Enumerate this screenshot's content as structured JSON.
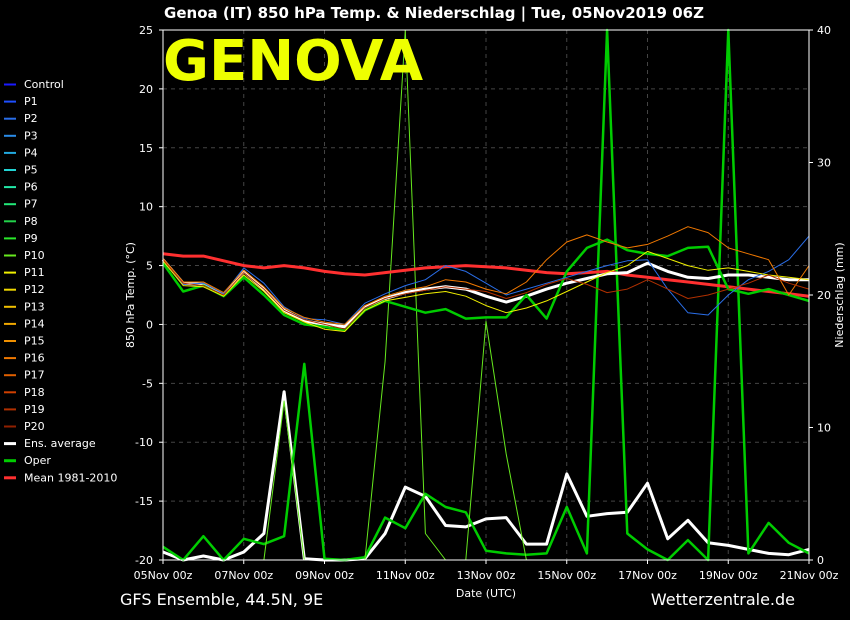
{
  "header": {
    "title": "Genoa  (IT)  850 hPa Temp. & Niederschlag | Tue, 05Nov2019 06Z",
    "city_label": "GENOVA"
  },
  "footer": {
    "left": "GFS Ensemble, 44.5N, 9E",
    "right": "Wetterzentrale.de"
  },
  "chart_data": {
    "type": "line",
    "title": "Genoa  (IT)  850 hPa Temp. & Niederschlag | Tue, 05Nov2019 06Z",
    "xlabel": "Date (UTC)",
    "ylabel": "850 hPa Temp. (°C)",
    "y2label": "Niederschlag (mm)",
    "ylim": [
      -20,
      25
    ],
    "y2lim": [
      0,
      40
    ],
    "x_ticks": [
      "05Nov 00z",
      "07Nov 00z",
      "09Nov 00z",
      "11Nov 00z",
      "13Nov 00z",
      "15Nov 00z",
      "17Nov 00z",
      "19Nov 00z",
      "21Nov 00z"
    ],
    "y_ticks": [
      25,
      20,
      15,
      10,
      5,
      0,
      -5,
      -10,
      -15,
      -20
    ],
    "y2_ticks": [
      40,
      30,
      20,
      10,
      0
    ],
    "grid": true,
    "legend_position": "left",
    "legend": [
      {
        "name": "Control",
        "color": "#1a1aff"
      },
      {
        "name": "P1",
        "color": "#1e4fff"
      },
      {
        "name": "P2",
        "color": "#2a6ee8"
      },
      {
        "name": "P3",
        "color": "#2a8ce8"
      },
      {
        "name": "P4",
        "color": "#22aae0"
      },
      {
        "name": "P5",
        "color": "#22d4d4"
      },
      {
        "name": "P6",
        "color": "#22e8a8"
      },
      {
        "name": "P7",
        "color": "#22e878"
      },
      {
        "name": "P8",
        "color": "#22d24a"
      },
      {
        "name": "P9",
        "color": "#2ae82a"
      },
      {
        "name": "P10",
        "color": "#66e81e"
      },
      {
        "name": "P11",
        "color": "#f0f000"
      },
      {
        "name": "P12",
        "color": "#f0d800"
      },
      {
        "name": "P13",
        "color": "#f0c000"
      },
      {
        "name": "P14",
        "color": "#f0a800"
      },
      {
        "name": "P15",
        "color": "#f09000"
      },
      {
        "name": "P16",
        "color": "#f07800"
      },
      {
        "name": "P17",
        "color": "#e06000"
      },
      {
        "name": "P18",
        "color": "#d04000"
      },
      {
        "name": "P19",
        "color": "#b03000"
      },
      {
        "name": "P20",
        "color": "#902000"
      },
      {
        "name": "Ens. average",
        "color": "#ffffff"
      },
      {
        "name": "Oper",
        "color": "#00cc00"
      },
      {
        "name": "Mean 1981-2010",
        "color": "#ff3030"
      }
    ],
    "x_days": [
      0,
      0.5,
      1,
      1.5,
      2,
      2.5,
      3,
      3.5,
      4,
      4.5,
      5,
      5.5,
      6,
      6.5,
      7,
      7.5,
      8,
      8.5,
      9,
      9.5,
      10,
      10.5,
      11,
      11.5,
      12,
      12.5,
      13,
      13.5,
      14,
      14.5,
      15,
      15.5,
      16
    ],
    "temp_series": [
      {
        "name": "Mean 1981-2010",
        "values": [
          6,
          5.8,
          5.8,
          5.4,
          5,
          4.8,
          5,
          4.8,
          4.5,
          4.3,
          4.2,
          4.4,
          4.6,
          4.8,
          4.9,
          5,
          4.9,
          4.8,
          4.6,
          4.4,
          4.3,
          4.4,
          4.5,
          4.2,
          4,
          3.8,
          3.6,
          3.4,
          3.2,
          3,
          2.8,
          2.6,
          2.4
        ]
      },
      {
        "name": "Ens. average",
        "values": [
          5.5,
          3.5,
          3.4,
          2.5,
          4.5,
          3,
          1.2,
          0.3,
          0,
          -0.2,
          1.5,
          2.2,
          2.7,
          3,
          3.2,
          3,
          2.4,
          1.9,
          2.4,
          3,
          3.5,
          3.9,
          4.3,
          4.4,
          5.2,
          4.5,
          4,
          3.9,
          4.2,
          4.2,
          4,
          3.8,
          3.8
        ]
      },
      {
        "name": "Oper",
        "values": [
          5.2,
          2.8,
          3.3,
          2.4,
          4,
          2.5,
          0.8,
          0,
          -0.2,
          -0.5,
          1.2,
          2,
          1.5,
          1,
          1.3,
          0.5,
          0.6,
          0.6,
          2.5,
          0.5,
          4.5,
          6.5,
          7.2,
          6.3,
          6,
          5.8,
          6.5,
          6.6,
          3,
          2.6,
          3,
          2.5,
          2
        ]
      },
      {
        "name": "P2",
        "values": [
          5.5,
          3.4,
          3.5,
          2.6,
          4.8,
          3.5,
          1.5,
          0.5,
          0.4,
          0,
          1.8,
          2.6,
          3.3,
          3.8,
          5,
          4.5,
          3.5,
          2.5,
          3,
          3.5,
          4,
          4.5,
          5,
          5.4,
          5.5,
          3,
          1,
          0.8,
          2.5,
          3.8,
          4.5,
          5.5,
          7.5
        ]
      },
      {
        "name": "P11",
        "values": [
          5.4,
          3.3,
          3.2,
          2.4,
          4.2,
          2.8,
          1,
          0.2,
          -0.4,
          -0.6,
          1.2,
          2,
          2.3,
          2.6,
          2.8,
          2.4,
          1.6,
          1,
          1.4,
          2,
          2.8,
          3.6,
          4.4,
          5,
          6.2,
          5.6,
          5,
          4.6,
          4.8,
          4.5,
          4.2,
          4,
          3.8
        ]
      },
      {
        "name": "P16",
        "values": [
          5.6,
          3.6,
          3.6,
          2.7,
          4.6,
          3.2,
          1.4,
          0.6,
          0.2,
          0,
          1.6,
          2.4,
          2.9,
          3.2,
          3.8,
          3.6,
          3,
          2.6,
          3.6,
          5.5,
          7,
          7.6,
          7,
          6.5,
          6.8,
          7.5,
          8.3,
          7.8,
          6.5,
          6,
          5.5,
          2.5,
          5
        ]
      },
      {
        "name": "P19",
        "values": [
          5.5,
          3.5,
          3.3,
          2.5,
          4.4,
          3,
          1.2,
          0.4,
          0,
          -0.4,
          1.4,
          2.2,
          2.6,
          2.9,
          3.2,
          3,
          2.8,
          2.2,
          2.7,
          3.4,
          3.9,
          3.4,
          2.7,
          3,
          3.8,
          3,
          2.2,
          2.5,
          3,
          3.5,
          4.2,
          3.5,
          3
        ]
      }
    ],
    "precip_series": [
      {
        "name": "Ens. average",
        "values": [
          0.6,
          0,
          0.3,
          0,
          0.6,
          2,
          12.7,
          0.1,
          0,
          0,
          0.1,
          2,
          5.5,
          4.8,
          2.6,
          2.5,
          3.1,
          3.2,
          1.2,
          1.2,
          6.5,
          3.3,
          3.5,
          3.6,
          5.8,
          1.6,
          3,
          1.3,
          1.1,
          0.8,
          0.5,
          0.4,
          0.8
        ]
      },
      {
        "name": "Oper",
        "values": [
          1,
          0,
          1.8,
          0,
          1.6,
          1.2,
          1.8,
          14.8,
          0.1,
          0,
          0.2,
          3.2,
          2.4,
          5,
          4,
          3.6,
          0.7,
          0.5,
          0.4,
          0.5,
          4,
          0.5,
          40,
          2,
          0.8,
          0,
          1.5,
          0,
          40,
          0.5,
          2.8,
          1.3,
          0.5
        ]
      },
      {
        "name": "P10",
        "values": [
          0,
          0,
          0,
          0,
          0,
          0,
          12,
          0,
          0,
          0,
          0,
          15,
          40,
          2,
          0,
          0,
          18,
          8,
          0,
          0,
          0,
          0,
          0,
          0,
          0,
          0,
          0,
          0,
          0,
          0,
          0,
          0,
          0
        ]
      }
    ]
  }
}
